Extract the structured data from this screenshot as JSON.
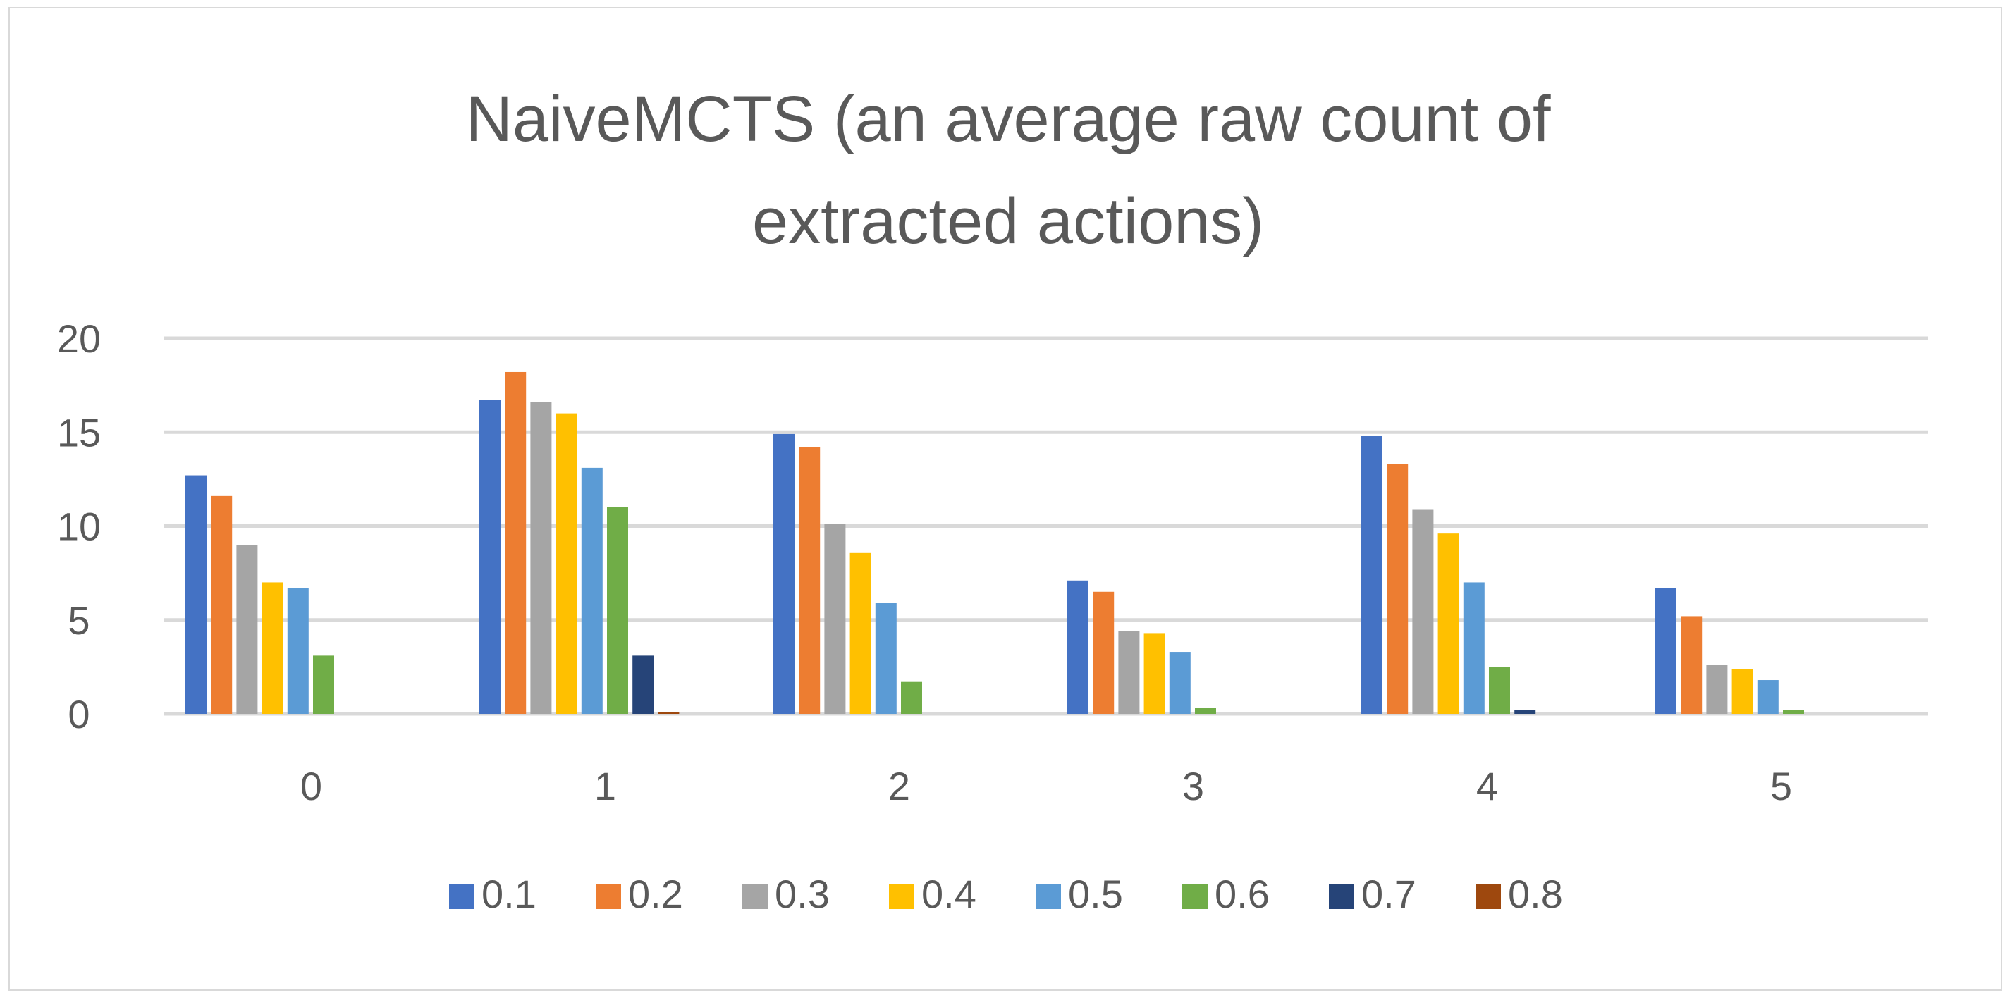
{
  "chart_data": {
    "type": "bar",
    "title_lines": [
      "NaiveMCTS (an average raw count of",
      "extracted actions)"
    ],
    "xlabel": "",
    "ylabel": "",
    "categories": [
      "0",
      "1",
      "2",
      "3",
      "4",
      "5"
    ],
    "ylim": [
      0,
      20
    ],
    "yticks": [
      0,
      5,
      10,
      15,
      20
    ],
    "grid": true,
    "legend_position": "bottom",
    "series": [
      {
        "name": "0.1",
        "color": "#4472C4",
        "values": [
          12.7,
          16.7,
          14.9,
          7.1,
          14.8,
          6.7
        ]
      },
      {
        "name": "0.2",
        "color": "#ED7D31",
        "values": [
          11.6,
          18.2,
          14.2,
          6.5,
          13.3,
          5.2
        ]
      },
      {
        "name": "0.3",
        "color": "#A5A5A5",
        "values": [
          9.0,
          16.6,
          10.1,
          4.4,
          10.9,
          2.6
        ]
      },
      {
        "name": "0.4",
        "color": "#FFC000",
        "values": [
          7.0,
          16.0,
          8.6,
          4.3,
          9.6,
          2.4
        ]
      },
      {
        "name": "0.5",
        "color": "#5B9BD5",
        "values": [
          6.7,
          13.1,
          5.9,
          3.3,
          7.0,
          1.8
        ]
      },
      {
        "name": "0.6",
        "color": "#70AD47",
        "values": [
          3.1,
          11.0,
          1.7,
          0.3,
          2.5,
          0.2
        ]
      },
      {
        "name": "0.7",
        "color": "#264478",
        "values": [
          0,
          3.1,
          0,
          0,
          0.2,
          0
        ]
      },
      {
        "name": "0.8",
        "color": "#9E480E",
        "values": [
          0,
          0.1,
          0,
          0,
          0,
          0
        ]
      }
    ]
  }
}
